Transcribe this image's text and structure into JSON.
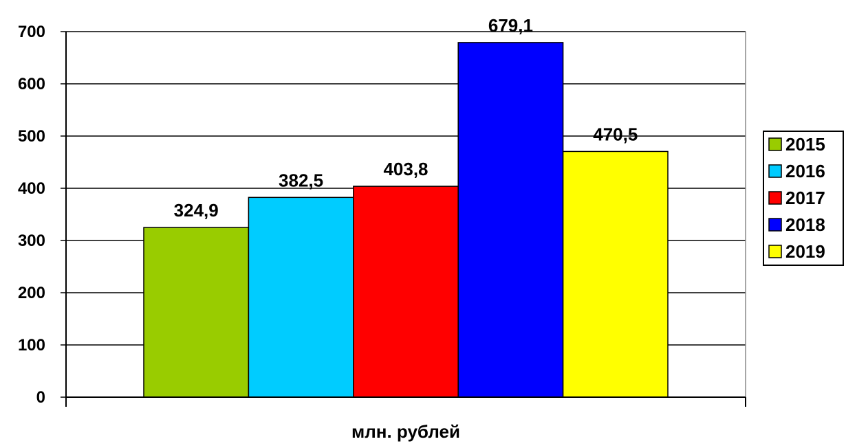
{
  "chart_data": {
    "type": "bar",
    "xlabel": "млн. рублей",
    "ylabel": "",
    "ylim": [
      0,
      700
    ],
    "yticks": [
      0,
      100,
      200,
      300,
      400,
      500,
      600,
      700
    ],
    "grid": true,
    "legend_position": "right",
    "series": [
      {
        "name": "2015",
        "value": 324.9,
        "label": "324,9",
        "color": "#99cc00"
      },
      {
        "name": "2016",
        "value": 382.5,
        "label": "382,5",
        "color": "#00ccff"
      },
      {
        "name": "2017",
        "value": 403.8,
        "label": "403,8",
        "color": "#ff0000"
      },
      {
        "name": "2018",
        "value": 679.1,
        "label": "679,1",
        "color": "#0000ff"
      },
      {
        "name": "2019",
        "value": 470.5,
        "label": "470,5",
        "color": "#ffff00"
      }
    ]
  }
}
